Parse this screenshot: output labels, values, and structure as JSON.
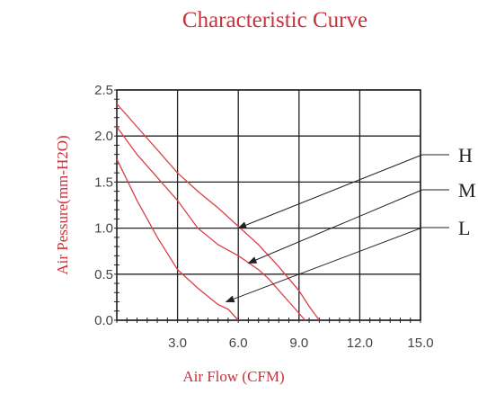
{
  "chart_data": {
    "type": "line",
    "title": "Characteristic Curve",
    "xlabel": "Air Flow (CFM)",
    "ylabel": "Air Pessure(mm-H2O)",
    "xlim": [
      0,
      15
    ],
    "ylim": [
      0,
      2.5
    ],
    "x_ticks": [
      "3.0",
      "6.0",
      "9.0",
      "12.0",
      "15.0"
    ],
    "y_ticks": [
      "0.0",
      "0.5",
      "1.0",
      "1.5",
      "2.0",
      "2.5"
    ],
    "grid": true,
    "curve_color": "#d84048",
    "series": [
      {
        "name": "H",
        "x": [
          0,
          1,
          2,
          3,
          4,
          5,
          6,
          7,
          8,
          9,
          9.5,
          10
        ],
        "y": [
          2.35,
          2.1,
          1.85,
          1.6,
          1.4,
          1.22,
          1.02,
          0.82,
          0.58,
          0.32,
          0.15,
          0
        ]
      },
      {
        "name": "M",
        "x": [
          0,
          1,
          2,
          3,
          4,
          5,
          6,
          7,
          7.5,
          8.5,
          9.3
        ],
        "y": [
          2.1,
          1.8,
          1.55,
          1.3,
          1.0,
          0.82,
          0.7,
          0.55,
          0.45,
          0.2,
          0
        ]
      },
      {
        "name": "L",
        "x": [
          0,
          1,
          2,
          3,
          4,
          5,
          5.5,
          6
        ],
        "y": [
          1.75,
          1.3,
          0.9,
          0.55,
          0.35,
          0.17,
          0.12,
          0
        ]
      }
    ],
    "callouts": [
      {
        "label": "H",
        "target": [
          6.0,
          1.0
        ]
      },
      {
        "label": "M",
        "target": [
          6.5,
          0.62
        ]
      },
      {
        "label": "L",
        "target": [
          5.4,
          0.2
        ]
      }
    ]
  }
}
